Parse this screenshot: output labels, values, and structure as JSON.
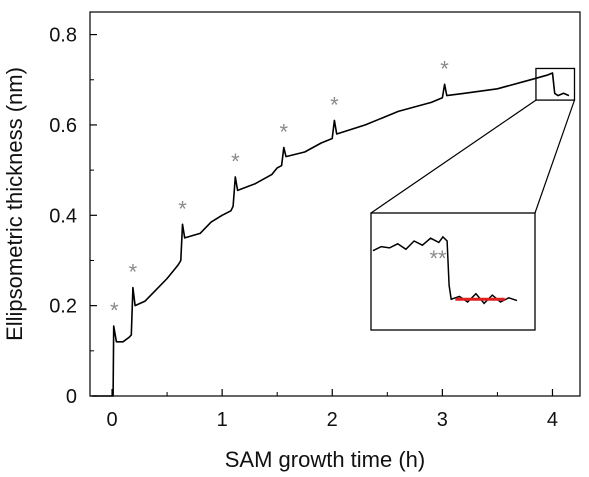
{
  "chart_data": {
    "type": "line",
    "xlabel": "SAM growth time (h)",
    "ylabel": "Ellipsometric thickness (nm)",
    "xlim": [
      -0.2,
      4.25
    ],
    "ylim": [
      0,
      0.85
    ],
    "xticks": [
      0,
      1,
      2,
      3,
      4
    ],
    "xtick_labels": [
      "0",
      "1",
      "2",
      "3",
      "4"
    ],
    "yticks": [
      0,
      0.2,
      0.4,
      0.6,
      0.8
    ],
    "ytick_labels": [
      "0",
      "0.2",
      "0.4",
      "0.6",
      "0.8"
    ],
    "grid": false,
    "series": [
      {
        "color": "#000000",
        "points": [
          [
            -0.18,
            0.0
          ],
          [
            0.0,
            0.0
          ],
          [
            0.01,
            0.0
          ],
          [
            0.015,
            0.155
          ],
          [
            0.04,
            0.12
          ],
          [
            0.1,
            0.12
          ],
          [
            0.155,
            0.13
          ],
          [
            0.175,
            0.135
          ],
          [
            0.19,
            0.24
          ],
          [
            0.21,
            0.2
          ],
          [
            0.3,
            0.21
          ],
          [
            0.4,
            0.235
          ],
          [
            0.5,
            0.26
          ],
          [
            0.6,
            0.29
          ],
          [
            0.625,
            0.3
          ],
          [
            0.64,
            0.38
          ],
          [
            0.66,
            0.35
          ],
          [
            0.8,
            0.36
          ],
          [
            0.9,
            0.385
          ],
          [
            1.0,
            0.4
          ],
          [
            1.08,
            0.41
          ],
          [
            1.1,
            0.42
          ],
          [
            1.12,
            0.485
          ],
          [
            1.14,
            0.455
          ],
          [
            1.3,
            0.47
          ],
          [
            1.45,
            0.49
          ],
          [
            1.5,
            0.505
          ],
          [
            1.54,
            0.51
          ],
          [
            1.56,
            0.55
          ],
          [
            1.58,
            0.53
          ],
          [
            1.75,
            0.54
          ],
          [
            1.9,
            0.56
          ],
          [
            2.0,
            0.57
          ],
          [
            2.02,
            0.61
          ],
          [
            2.04,
            0.58
          ],
          [
            2.3,
            0.6
          ],
          [
            2.6,
            0.63
          ],
          [
            2.9,
            0.65
          ],
          [
            3.0,
            0.66
          ],
          [
            3.02,
            0.69
          ],
          [
            3.04,
            0.665
          ],
          [
            3.2,
            0.67
          ],
          [
            3.5,
            0.68
          ],
          [
            3.8,
            0.7
          ],
          [
            3.95,
            0.71
          ],
          [
            4.0,
            0.715
          ],
          [
            4.02,
            0.67
          ],
          [
            4.05,
            0.665
          ],
          [
            4.1,
            0.67
          ],
          [
            4.15,
            0.665
          ]
        ]
      }
    ],
    "spike_markers": [
      {
        "x": 0.02,
        "label": "*"
      },
      {
        "x": 0.19,
        "label": "*"
      },
      {
        "x": 0.64,
        "label": "*"
      },
      {
        "x": 1.12,
        "label": "*"
      },
      {
        "x": 1.56,
        "label": "*"
      },
      {
        "x": 2.02,
        "label": "*"
      },
      {
        "x": 3.02,
        "label": "*"
      }
    ],
    "inset": {
      "xlim": [
        3.85,
        4.2
      ],
      "ylim": [
        0.655,
        0.725
      ],
      "label": "**",
      "series": [
        {
          "color": "#000000",
          "points": [
            [
              3.85,
              0.705
            ],
            [
              3.87,
              0.708
            ],
            [
              3.89,
              0.707
            ],
            [
              3.91,
              0.71
            ],
            [
              3.93,
              0.706
            ],
            [
              3.95,
              0.712
            ],
            [
              3.97,
              0.709
            ],
            [
              3.99,
              0.714
            ],
            [
              4.01,
              0.711
            ],
            [
              4.02,
              0.715
            ],
            [
              4.03,
              0.712
            ],
            [
              4.035,
              0.68
            ],
            [
              4.04,
              0.67
            ],
            [
              4.06,
              0.672
            ],
            [
              4.08,
              0.668
            ],
            [
              4.1,
              0.674
            ],
            [
              4.12,
              0.667
            ],
            [
              4.14,
              0.673
            ],
            [
              4.16,
              0.668
            ],
            [
              4.18,
              0.671
            ],
            [
              4.2,
              0.669
            ]
          ]
        },
        {
          "color": "#e02020",
          "points": [
            [
              4.05,
              0.67
            ],
            [
              4.17,
              0.67
            ]
          ]
        }
      ]
    }
  }
}
